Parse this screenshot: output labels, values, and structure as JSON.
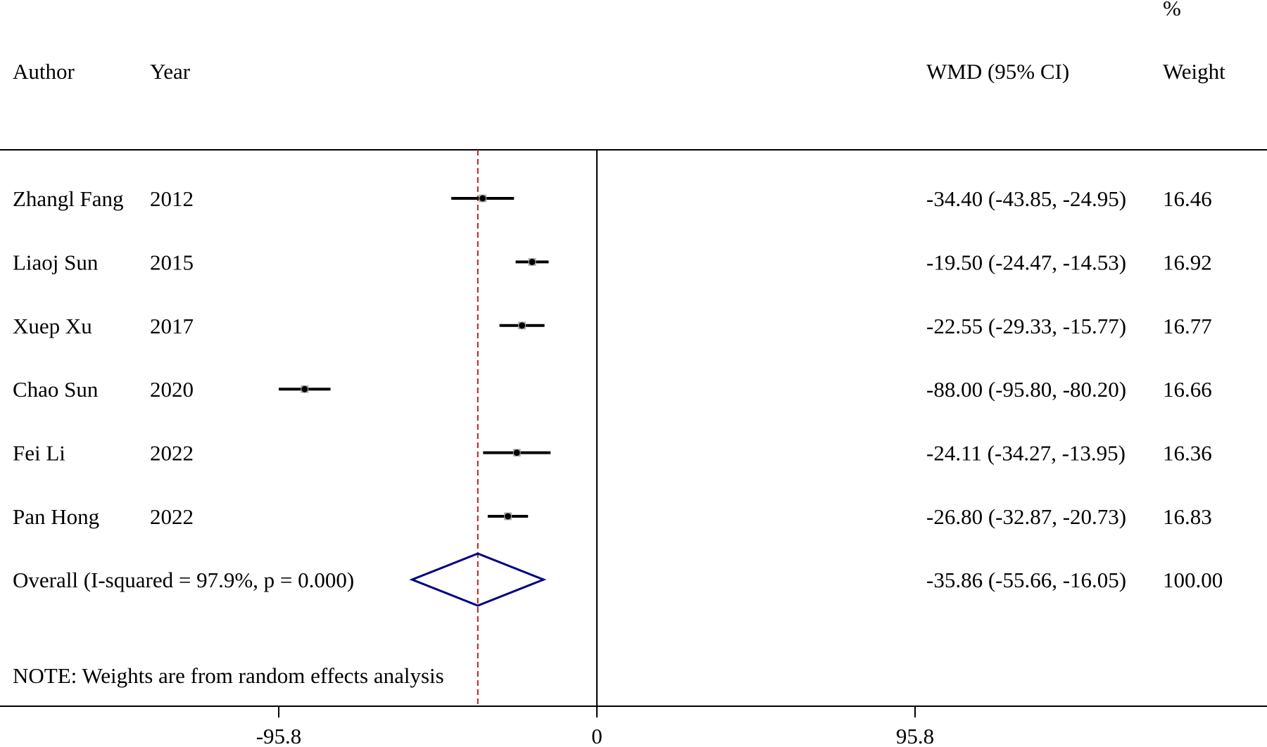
{
  "headers": {
    "author": "Author",
    "year": "Year",
    "effect": "WMD (95% CI)",
    "weight_pct": "%",
    "weight": "Weight"
  },
  "chart_data": {
    "type": "forest",
    "measure": "WMD",
    "x_ticks": [
      -95.8,
      0,
      95.8
    ],
    "x_tick_labels": [
      "-95.8",
      "0",
      "95.8"
    ],
    "x_range": [
      -180,
      195
    ],
    "studies": [
      {
        "author": "Zhangl Fang",
        "year": "2012",
        "estimate": -34.4,
        "ci_low": -43.85,
        "ci_high": -24.95,
        "ci_text": "-34.40 (-43.85, -24.95)",
        "weight": "16.46"
      },
      {
        "author": "Liaoj Sun",
        "year": "2015",
        "estimate": -19.5,
        "ci_low": -24.47,
        "ci_high": -14.53,
        "ci_text": "-19.50 (-24.47, -14.53)",
        "weight": "16.92"
      },
      {
        "author": "Xuep Xu",
        "year": "2017",
        "estimate": -22.55,
        "ci_low": -29.33,
        "ci_high": -15.77,
        "ci_text": "-22.55 (-29.33, -15.77)",
        "weight": "16.77"
      },
      {
        "author": "Chao Sun",
        "year": "2020",
        "estimate": -88.0,
        "ci_low": -95.8,
        "ci_high": -80.2,
        "ci_text": "-88.00 (-95.80, -80.20)",
        "weight": "16.66"
      },
      {
        "author": "Fei Li",
        "year": "2022",
        "estimate": -24.11,
        "ci_low": -34.27,
        "ci_high": -13.95,
        "ci_text": "-24.11 (-34.27, -13.95)",
        "weight": "16.36"
      },
      {
        "author": "Pan Hong",
        "year": "2022",
        "estimate": -26.8,
        "ci_low": -32.87,
        "ci_high": -20.73,
        "ci_text": "-26.80 (-32.87, -20.73)",
        "weight": "16.83"
      }
    ],
    "overall": {
      "label": "Overall  (I-squared = 97.9%, p = 0.000)",
      "estimate": -35.86,
      "ci_low": -55.66,
      "ci_high": -16.05,
      "ci_text": "-35.86 (-55.66, -16.05)",
      "weight": "100.00"
    },
    "note": "NOTE: Weights are from random effects analysis",
    "colors": {
      "text": "#000000",
      "ci_line": "#000000",
      "point_box": "#a9a9a9",
      "point": "#000000",
      "overall_line": "#b22222",
      "diamond": "#000080"
    }
  }
}
